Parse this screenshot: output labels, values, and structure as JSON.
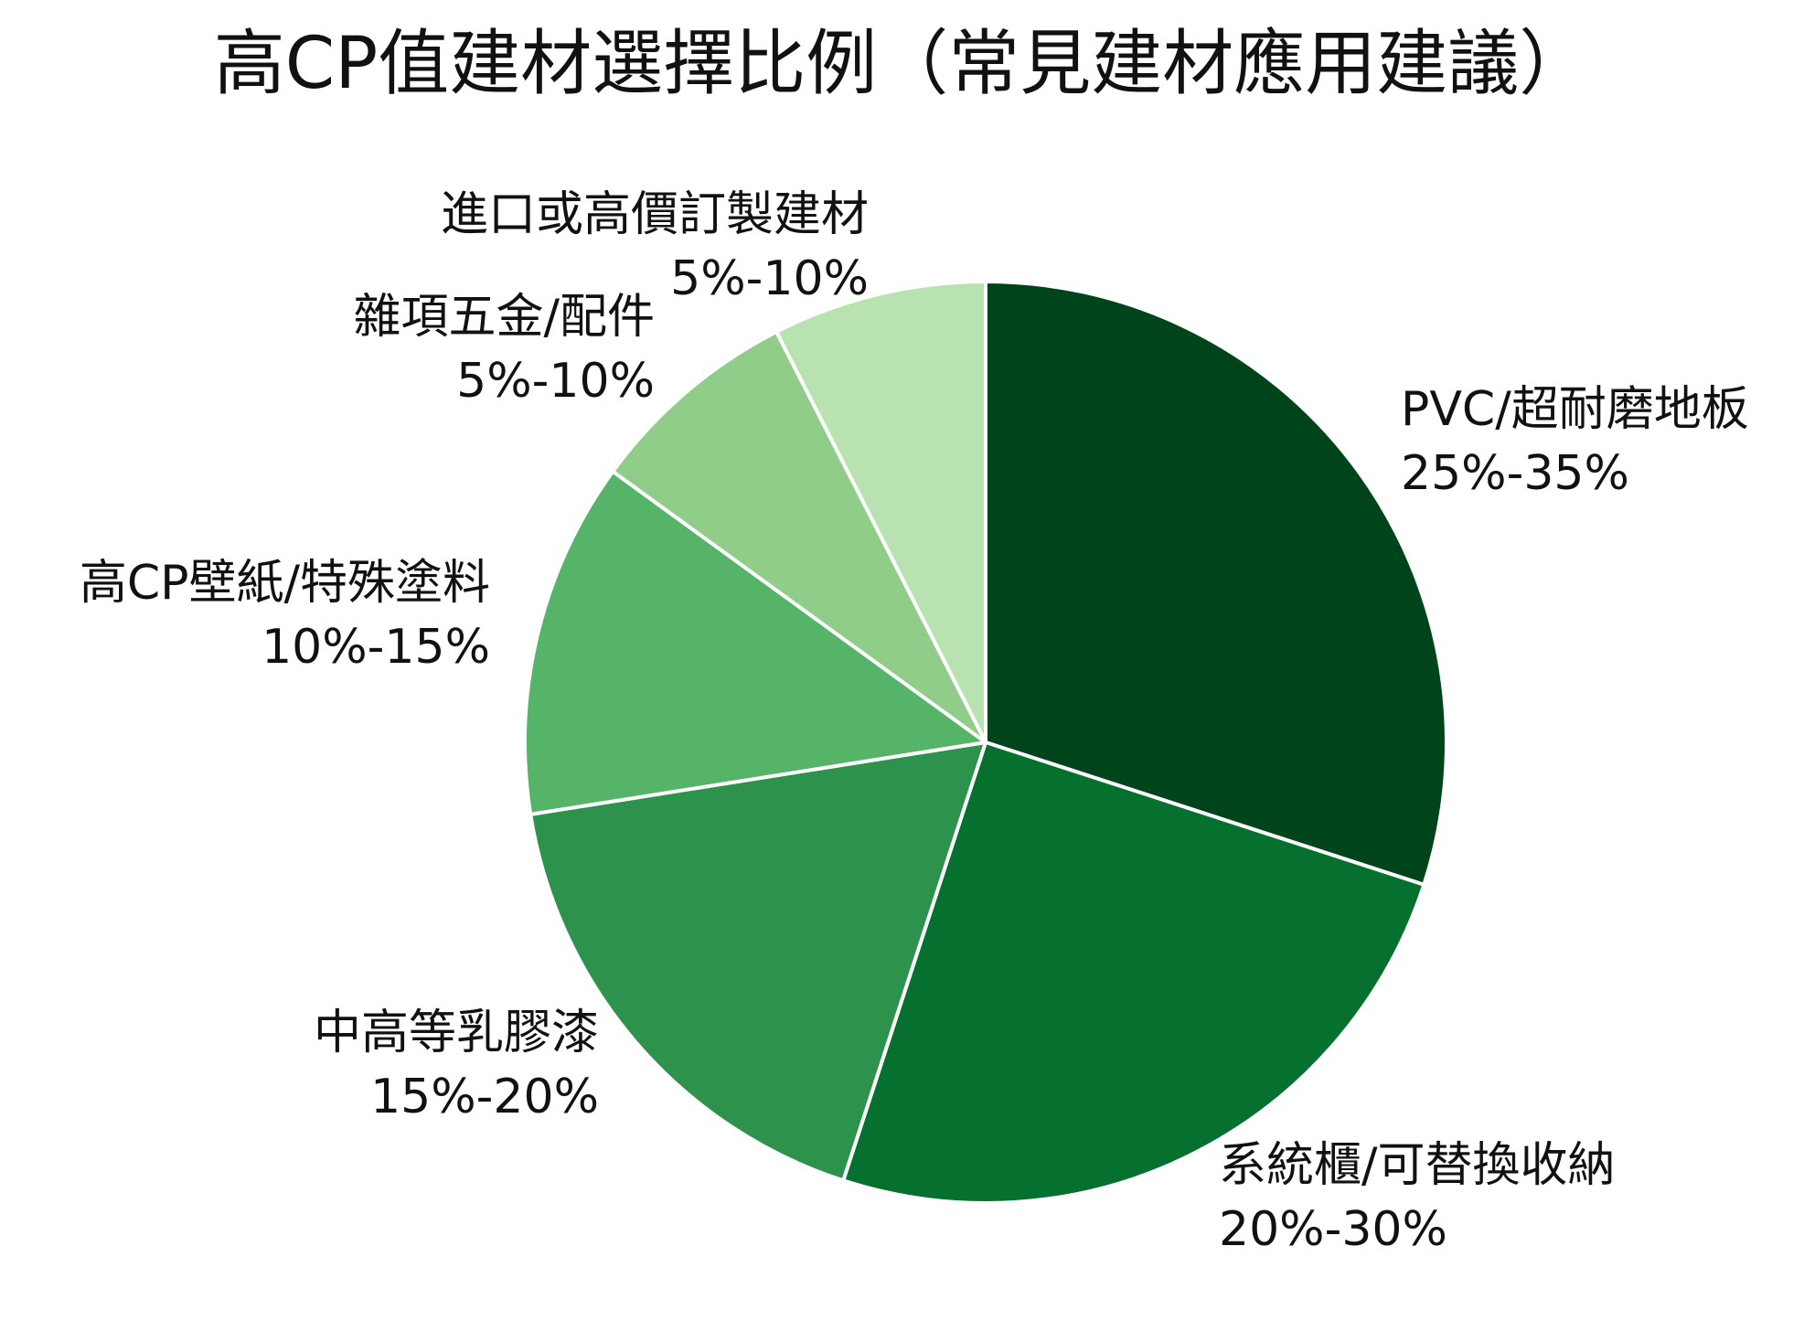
{
  "chart_data": {
    "type": "pie",
    "title": "高CP值建材選擇比例（常見建材應用建議）",
    "slices": [
      {
        "name": "PVC/超耐磨地板",
        "range_label": "25%-35%",
        "value": 30,
        "color": "#00441b"
      },
      {
        "name": "系統櫃/可替換收納",
        "range_label": "20%-30%",
        "value": 25,
        "color": "#06702f"
      },
      {
        "name": "中高等乳膠漆",
        "range_label": "15%-20%",
        "value": 17.5,
        "color": "#2d924c"
      },
      {
        "name": "高CP壁紙/特殊塗料",
        "range_label": "10%-15%",
        "value": 12.5,
        "color": "#55b468"
      },
      {
        "name": "雜項五金/配件",
        "range_label": "5%-10%",
        "value": 7.5,
        "color": "#8fcd88"
      },
      {
        "name": "進口或高價訂製建材",
        "range_label": "5%-10%",
        "value": 7.5,
        "color": "#b9e2b1"
      }
    ],
    "start_angle": "12 o'clock",
    "direction": "clockwise",
    "slice_border_color": "#ffffff",
    "legend": "none"
  }
}
